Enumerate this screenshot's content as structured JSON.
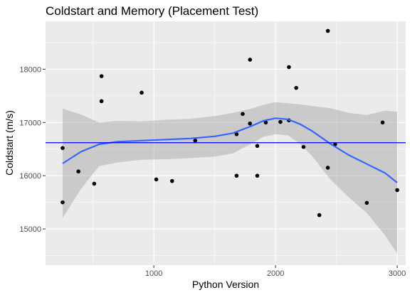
{
  "chart_data": {
    "type": "scatter",
    "title": "Coldstart and Memory (Placement Test)",
    "xlabel": "Python Version",
    "ylabel": "Coldstart (m/s)",
    "xlim": [
      110,
      3070
    ],
    "ylim": [
      14320,
      18900
    ],
    "x_ticks": [
      1000,
      2000,
      3000
    ],
    "x_tick_labels": [
      "1000",
      "2000",
      "3000"
    ],
    "y_ticks": [
      15000,
      16000,
      17000,
      18000
    ],
    "y_tick_labels": [
      "15000",
      "16000",
      "17000",
      "18000"
    ],
    "points": [
      [
        250,
        16520
      ],
      [
        250,
        15500
      ],
      [
        380,
        16080
      ],
      [
        510,
        15850
      ],
      [
        570,
        17870
      ],
      [
        570,
        17400
      ],
      [
        900,
        17560
      ],
      [
        1020,
        15930
      ],
      [
        1150,
        15900
      ],
      [
        1340,
        16660
      ],
      [
        1680,
        16000
      ],
      [
        1680,
        16780
      ],
      [
        1730,
        17160
      ],
      [
        1790,
        18180
      ],
      [
        1790,
        16980
      ],
      [
        1850,
        16560
      ],
      [
        1850,
        16000
      ],
      [
        1920,
        17000
      ],
      [
        2040,
        17010
      ],
      [
        2110,
        18040
      ],
      [
        2110,
        17040
      ],
      [
        2170,
        17650
      ],
      [
        2230,
        16540
      ],
      [
        2360,
        15260
      ],
      [
        2430,
        18720
      ],
      [
        2430,
        16150
      ],
      [
        2490,
        16590
      ],
      [
        2750,
        15490
      ],
      [
        2880,
        17000
      ],
      [
        3000,
        15730
      ]
    ],
    "hline": {
      "y": 16620,
      "color": "#0000ff"
    },
    "smooth": {
      "x": [
        250,
        400,
        550,
        700,
        900,
        1100,
        1300,
        1500,
        1650,
        1800,
        1900,
        2000,
        2100,
        2200,
        2300,
        2450,
        2600,
        2750,
        2900,
        3000
      ],
      "y": [
        16230,
        16450,
        16590,
        16640,
        16660,
        16680,
        16700,
        16740,
        16800,
        16930,
        17030,
        17080,
        17060,
        16970,
        16840,
        16600,
        16390,
        16220,
        16050,
        15870
      ],
      "lower": [
        15200,
        15750,
        16180,
        16250,
        16300,
        16310,
        16330,
        16360,
        16420,
        16600,
        16730,
        16780,
        16760,
        16600,
        16370,
        15930,
        15600,
        15300,
        14880,
        14540
      ],
      "upper": [
        17260,
        17150,
        17000,
        17030,
        17020,
        17050,
        17070,
        17120,
        17180,
        17260,
        17330,
        17380,
        17360,
        17340,
        17310,
        17270,
        17180,
        17140,
        17220,
        17200
      ]
    },
    "colors": {
      "panel": "#ebebeb",
      "grid_major": "#ffffff",
      "points": "#000000",
      "smooth_line": "#3366ff",
      "ribbon": "#999999",
      "hline": "#0000ff"
    },
    "grid": true
  }
}
